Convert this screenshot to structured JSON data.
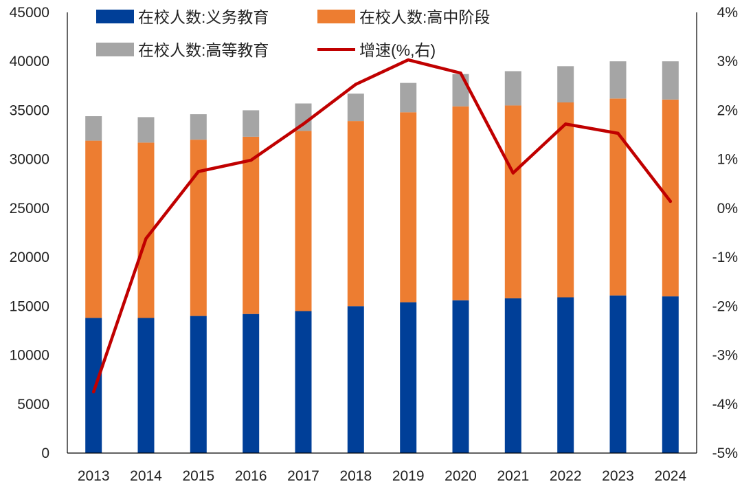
{
  "chart_data": {
    "type": "bar",
    "stacked": true,
    "categories": [
      "2013",
      "2014",
      "2015",
      "2016",
      "2017",
      "2018",
      "2019",
      "2020",
      "2021",
      "2022",
      "2023",
      "2024"
    ],
    "series": [
      {
        "name": "在校人数:义务教育",
        "kind": "bar",
        "axis": "left",
        "color": "#003F98",
        "values": [
          13800,
          13800,
          14000,
          14200,
          14500,
          15000,
          15400,
          15600,
          15800,
          15900,
          16100,
          16000
        ]
      },
      {
        "name": "在校人数:高中阶段",
        "kind": "bar",
        "axis": "left",
        "color": "#ED7D31",
        "values": [
          18100,
          17900,
          18000,
          18100,
          18400,
          18900,
          19400,
          19800,
          19700,
          19900,
          20100,
          20100
        ]
      },
      {
        "name": "在校人数:高等教育",
        "kind": "bar",
        "axis": "left",
        "color": "#A5A5A5",
        "values": [
          2500,
          2600,
          2600,
          2700,
          2800,
          2800,
          3000,
          3300,
          3500,
          3700,
          3800,
          3900
        ]
      },
      {
        "name": "增速(%,右)",
        "kind": "line",
        "axis": "right",
        "color": "#C00000",
        "values": [
          -3.75,
          -0.62,
          0.75,
          0.98,
          1.72,
          2.53,
          3.03,
          2.76,
          0.72,
          1.72,
          1.53,
          0.14
        ]
      }
    ],
    "y_left": {
      "min": 0,
      "max": 45000,
      "step": 5000,
      "ticks": [
        "0",
        "5000",
        "10000",
        "15000",
        "20000",
        "25000",
        "30000",
        "35000",
        "40000",
        "45000"
      ]
    },
    "y_right": {
      "min": -5,
      "max": 4,
      "step": 1,
      "ticks": [
        "-5%",
        "-4%",
        "-3%",
        "-2%",
        "-1%",
        "0%",
        "1%",
        "2%",
        "3%",
        "4%"
      ]
    },
    "legend_position": "top",
    "grid": false
  }
}
